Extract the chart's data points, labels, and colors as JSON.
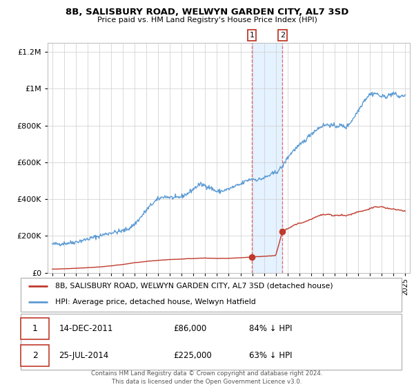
{
  "title": "8B, SALISBURY ROAD, WELWYN GARDEN CITY, AL7 3SD",
  "subtitle": "Price paid vs. HM Land Registry's House Price Index (HPI)",
  "background_color": "#ffffff",
  "plot_background": "#ffffff",
  "grid_color": "#cccccc",
  "hpi_color": "#5b9bd5",
  "price_color": "#c0392b",
  "marker_color": "#c0392b",
  "shade_color": "#ddeeff",
  "dashed_color": "#e05050",
  "annotation1_date": 2011.96,
  "annotation2_date": 2014.56,
  "annotation1_price": 86000,
  "annotation2_price": 225000,
  "legend_entries": [
    "8B, SALISBURY ROAD, WELWYN GARDEN CITY, AL7 3SD (detached house)",
    "HPI: Average price, detached house, Welwyn Hatfield"
  ],
  "table_entries": [
    {
      "num": "1",
      "date": "14-DEC-2011",
      "price": "£86,000",
      "pct": "84% ↓ HPI"
    },
    {
      "num": "2",
      "date": "25-JUL-2014",
      "price": "£225,000",
      "pct": "63% ↓ HPI"
    }
  ],
  "footer": "Contains HM Land Registry data © Crown copyright and database right 2024.\nThis data is licensed under the Open Government Licence v3.0.",
  "ylim": [
    0,
    1250000
  ],
  "xlim_start": 1994.6,
  "xlim_end": 2025.4
}
